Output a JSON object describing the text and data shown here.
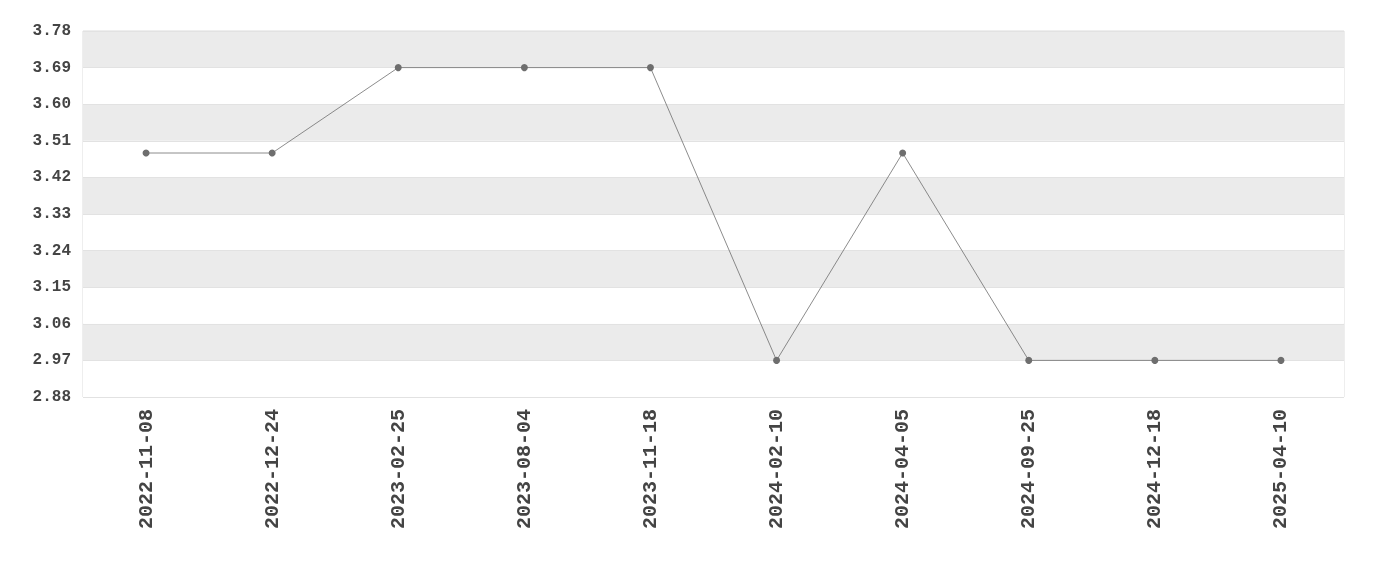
{
  "chart_data": {
    "type": "line",
    "categories": [
      "2022-11-08",
      "2022-12-24",
      "2023-02-25",
      "2023-08-04",
      "2023-11-18",
      "2024-02-10",
      "2024-04-05",
      "2024-09-25",
      "2024-12-18",
      "2025-04-10"
    ],
    "series": [
      {
        "color": "#6e6e6e",
        "values": [
          3.48,
          3.48,
          3.69,
          3.69,
          3.69,
          2.97,
          3.48,
          2.97,
          2.97,
          2.97
        ]
      }
    ],
    "ylim": [
      2.88,
      3.78
    ],
    "yticks": [
      2.88,
      2.97,
      3.06,
      3.15,
      3.24,
      3.33,
      3.42,
      3.51,
      {
        "value": 3.6,
        "label": "3.60"
      },
      3.69,
      3.78
    ],
    "grid": "y",
    "marker": "circle",
    "line_style": "solid"
  }
}
